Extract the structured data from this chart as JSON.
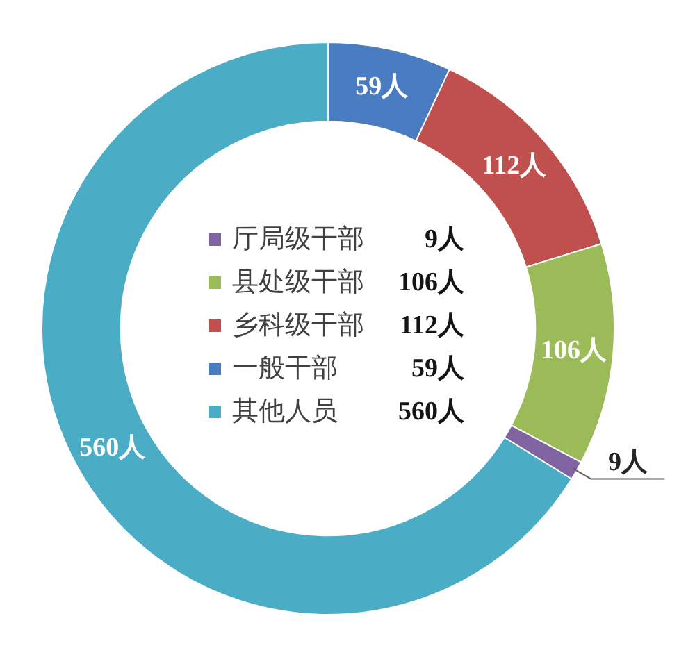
{
  "chart_data": {
    "type": "donut",
    "categories": [
      "厅局级干部",
      "县处级干部",
      "乡科级干部",
      "一般干部",
      "其他人员"
    ],
    "values": [
      9,
      106,
      112,
      59,
      560
    ],
    "colors": [
      "#8064a2",
      "#9bbb59",
      "#c0504d",
      "#4a7cc2",
      "#4bacc6"
    ],
    "value_labels": [
      "9人",
      "106人",
      "112人",
      "59人",
      "560人"
    ],
    "legend": "center"
  }
}
